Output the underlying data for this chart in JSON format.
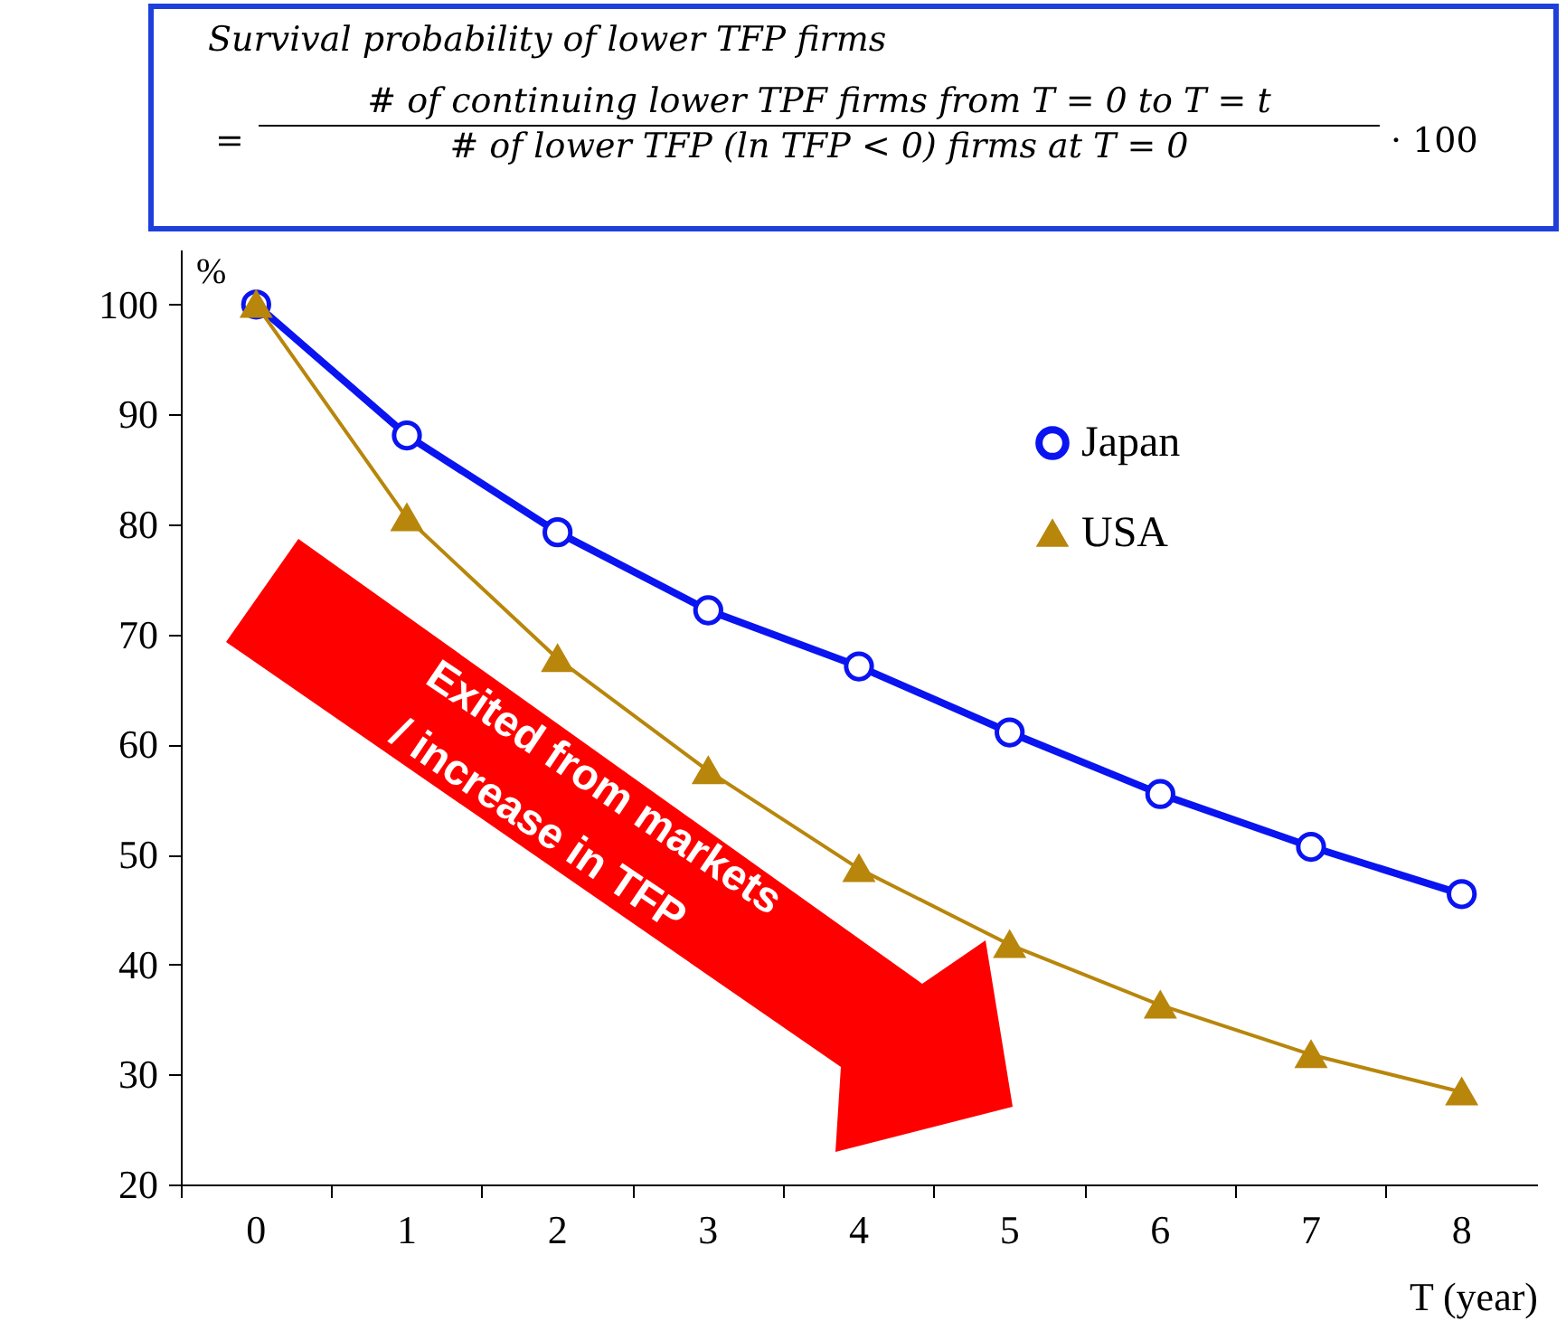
{
  "chart_data": {
    "type": "line",
    "title": "Survival probability of lower TFP firms",
    "annotations": [
      "=",
      "# of continuing lower TPF firms from T = 0 to T = t",
      "# of lower TFP (ln TFP < 0) firms at T = 0",
      "· 100",
      "Exited from markets",
      "/ increase in TFP"
    ],
    "xlabel": "T (year)",
    "ylabel": "%",
    "categories": [
      "0",
      "1",
      "2",
      "3",
      "4",
      "5",
      "6",
      "7",
      "8"
    ],
    "series": [
      {
        "name": "Japan",
        "color": "#0a14f0",
        "marker": "circle",
        "values": [
          100,
          88.1,
          79.3,
          72.2,
          67.1,
          61.1,
          55.5,
          50.7,
          46.4
        ]
      },
      {
        "name": "USA",
        "color": "#b8860b",
        "marker": "triangle",
        "values": [
          100,
          80.6,
          67.8,
          57.6,
          48.7,
          41.8,
          36.3,
          31.8,
          28.4
        ]
      }
    ],
    "ylim": [
      20,
      105
    ],
    "yticks": [
      20,
      30,
      40,
      50,
      60,
      70,
      80,
      90,
      100
    ],
    "grid": false,
    "legend": "top right"
  }
}
